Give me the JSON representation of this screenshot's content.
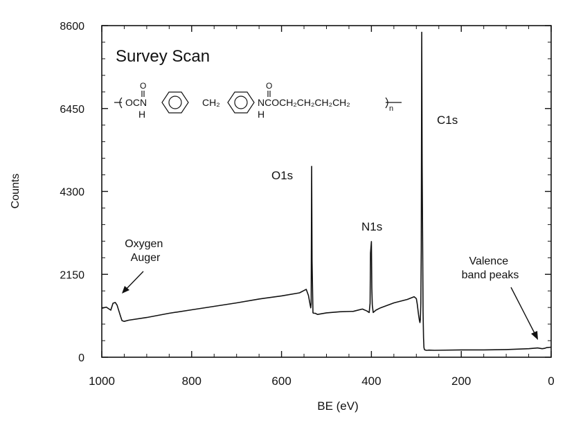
{
  "chart_data": {
    "type": "line",
    "title": "Survey Scan",
    "formula": "—(OCNH–C6H4–CH2–C6H4–NHCOCH2CH2CH2CH2)n—",
    "xlabel": "BE (eV)",
    "ylabel": "Counts",
    "xlim": [
      1000,
      0
    ],
    "ylim": [
      0,
      8600
    ],
    "x_reversed": true,
    "grid": false,
    "x_ticks": [
      1000,
      800,
      600,
      400,
      200,
      0
    ],
    "x_tick_labels": [
      "1000",
      "800",
      "600",
      "400",
      "200",
      "0"
    ],
    "y_ticks": [
      0,
      2150,
      4300,
      6450,
      8600
    ],
    "y_tick_labels": [
      "0",
      "2150",
      "4300",
      "6450",
      "8600"
    ],
    "series": [
      {
        "x": [
          1000,
          990,
          980,
          975,
          970,
          966,
          962,
          958,
          955,
          950,
          940,
          900,
          850,
          800,
          750,
          700,
          650,
          600,
          560,
          550,
          545,
          540,
          537,
          535,
          534,
          533,
          532,
          530,
          528,
          525,
          520,
          500,
          470,
          440,
          420,
          410,
          405,
          403,
          402,
          400,
          399,
          398,
          396,
          394,
          390,
          380,
          350,
          320,
          305,
          300,
          298,
          295,
          293,
          292,
          291,
          290,
          289,
          288,
          287,
          286,
          285,
          284,
          283,
          282,
          281,
          280,
          279,
          278,
          276,
          272,
          260,
          200,
          150,
          100,
          50,
          30,
          20,
          15,
          10,
          0
        ],
        "y": [
          1270,
          1300,
          1220,
          1400,
          1420,
          1350,
          1200,
          1050,
          950,
          930,
          960,
          1030,
          1140,
          1230,
          1320,
          1410,
          1510,
          1590,
          1670,
          1730,
          1760,
          1600,
          1400,
          1280,
          1380,
          4950,
          2500,
          1150,
          1140,
          1140,
          1110,
          1150,
          1180,
          1190,
          1250,
          1200,
          1160,
          1400,
          2700,
          3000,
          1800,
          1350,
          1160,
          1180,
          1220,
          1280,
          1410,
          1500,
          1570,
          1520,
          1380,
          1100,
          950,
          900,
          980,
          1400,
          2800,
          8430,
          5000,
          3000,
          1200,
          500,
          250,
          200,
          190,
          185,
          185,
          180,
          180,
          185,
          180,
          190,
          190,
          200,
          220,
          240,
          220,
          230,
          250,
          260
        ]
      }
    ],
    "annotations": [
      {
        "text": "O1s"
      },
      {
        "text": "N1s"
      },
      {
        "text": "C1s"
      },
      {
        "text": "Oxygen Auger"
      },
      {
        "text": "Valence band peaks"
      }
    ]
  }
}
